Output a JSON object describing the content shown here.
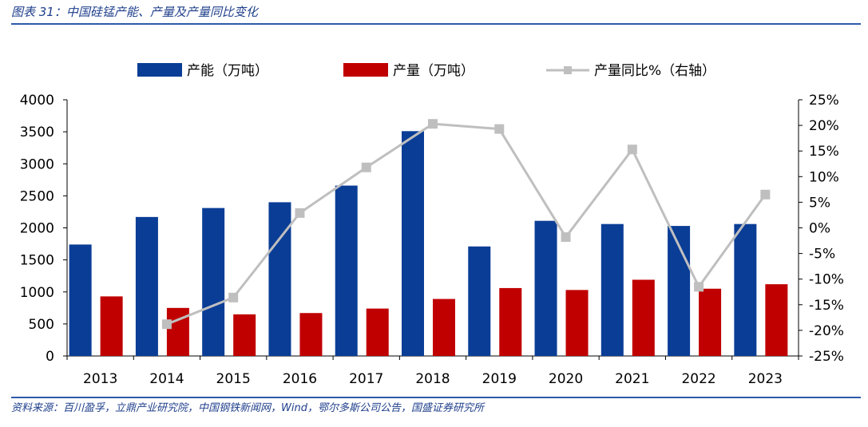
{
  "header": {
    "figure_title": "图表 31：中国硅锰产能、产量及产量同比变化"
  },
  "footer": {
    "source": "资料来源：百川盈孚，立鼎产业研究院，中国钢铁新闻网，Wind，鄂尔多斯公司公告，国盛证券研究所"
  },
  "colors": {
    "capacity": "#0a3d96",
    "output": "#c00000",
    "yoy": "#bfbfbf",
    "rule": "#2e5aa8"
  },
  "chart_data": {
    "type": "bar",
    "categories": [
      "2013",
      "2014",
      "2015",
      "2016",
      "2017",
      "2018",
      "2019",
      "2020",
      "2021",
      "2022",
      "2023"
    ],
    "series": [
      {
        "name": "产能（万吨）",
        "type": "bar",
        "axis": "left",
        "values": [
          1740,
          2170,
          2310,
          2400,
          2660,
          3510,
          1710,
          2110,
          2060,
          2030,
          2060
        ]
      },
      {
        "name": "产量（万吨）",
        "type": "bar",
        "axis": "left",
        "values": [
          930,
          750,
          650,
          670,
          740,
          890,
          1060,
          1030,
          1190,
          1050,
          1120
        ]
      },
      {
        "name": "产量同比%（右轴）",
        "type": "line",
        "axis": "right",
        "values": [
          null,
          -18.8,
          -13.6,
          2.9,
          11.8,
          20.3,
          19.3,
          -1.8,
          15.3,
          -11.5,
          6.5
        ]
      }
    ],
    "y_left": {
      "min": 0,
      "max": 4000,
      "step": 500,
      "ticks": [
        "0",
        "500",
        "1000",
        "1500",
        "2000",
        "2500",
        "3000",
        "3500",
        "4000"
      ]
    },
    "y_right": {
      "min": -25,
      "max": 25,
      "step": 5,
      "ticks": [
        "-25%",
        "-20%",
        "-15%",
        "-10%",
        "-5%",
        "0%",
        "5%",
        "10%",
        "15%",
        "20%",
        "25%"
      ]
    },
    "legend_position": "top",
    "grid": false
  }
}
